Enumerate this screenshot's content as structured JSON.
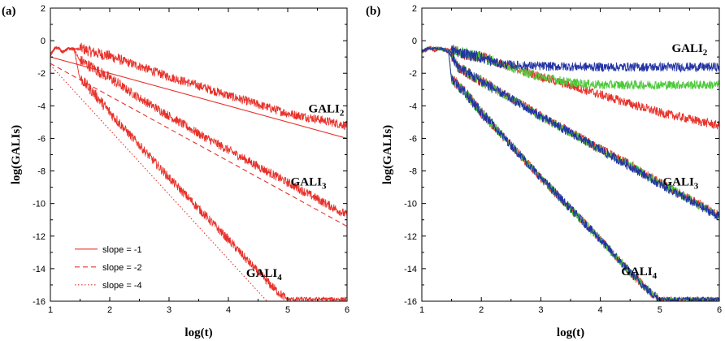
{
  "chart_data": [
    {
      "type": "line",
      "panel_label": "(a)",
      "xlabel": "log(t)",
      "ylabel": "log(GALIs)",
      "xlim": [
        1,
        6
      ],
      "ylim": [
        -16,
        2
      ],
      "xticks": [
        1,
        2,
        3,
        4,
        5,
        6
      ],
      "yticks": [
        2,
        0,
        -2,
        -4,
        -6,
        -8,
        -10,
        -12,
        -14,
        -16
      ],
      "legend": {
        "position": "lower-left",
        "entries": [
          "slope = -1",
          "slope = -2",
          "slope = -4"
        ]
      },
      "annotations": [
        {
          "text": "GALI",
          "sub": "2",
          "x": 5.35,
          "y": -4.4
        },
        {
          "text": "GALI",
          "sub": "3",
          "x": 5.05,
          "y": -8.9
        },
        {
          "text": "GALI",
          "sub": "4",
          "x": 4.3,
          "y": -14.5
        }
      ],
      "series": [
        {
          "role": "GALI_2",
          "color": "#e8312a",
          "style": "noisy",
          "x": [
            1.0,
            1.08,
            1.15,
            1.2,
            1.3,
            1.5,
            1.7,
            2.0,
            2.5,
            3.0,
            3.5,
            4.0,
            4.5,
            5.0,
            5.5,
            6.0
          ],
          "values": [
            -0.9,
            -0.45,
            -0.5,
            -0.75,
            -0.5,
            -0.55,
            -0.8,
            -1.05,
            -1.65,
            -2.3,
            -2.85,
            -3.45,
            -4.0,
            -4.55,
            -4.9,
            -5.3
          ]
        },
        {
          "role": "GALI_3",
          "color": "#e8312a",
          "style": "noisy",
          "x": [
            1.0,
            1.08,
            1.15,
            1.2,
            1.3,
            1.4,
            1.5,
            2.0,
            2.5,
            3.0,
            3.5,
            4.0,
            4.5,
            5.0,
            5.5,
            6.0
          ],
          "values": [
            -0.9,
            -0.45,
            -0.5,
            -0.75,
            -0.5,
            -0.55,
            -1.3,
            -2.4,
            -3.6,
            -4.7,
            -5.8,
            -6.8,
            -7.8,
            -8.8,
            -9.8,
            -10.8
          ]
        },
        {
          "role": "GALI_4",
          "color": "#e8312a",
          "style": "noisy",
          "x": [
            1.0,
            1.08,
            1.15,
            1.2,
            1.3,
            1.4,
            1.5,
            1.75,
            2.0,
            2.5,
            3.0,
            3.5,
            4.0,
            4.5,
            4.8,
            5.0,
            5.5,
            6.0
          ],
          "values": [
            -0.9,
            -0.45,
            -0.5,
            -0.75,
            -0.5,
            -0.55,
            -2.4,
            -3.4,
            -4.5,
            -6.5,
            -8.5,
            -10.4,
            -12.3,
            -14.3,
            -15.4,
            -16.0,
            -16.0,
            -16.0
          ]
        },
        {
          "name": "slope = -1",
          "color": "#e8312a",
          "style": "solid",
          "x": [
            1,
            6
          ],
          "values": [
            -1.0,
            -6.0
          ]
        },
        {
          "name": "slope = -2",
          "color": "#e8312a",
          "style": "dashed",
          "x": [
            1,
            6
          ],
          "values": [
            -1.4,
            -11.4
          ]
        },
        {
          "name": "slope = -4",
          "color": "#e8312a",
          "style": "dotted",
          "x": [
            1,
            4.65
          ],
          "values": [
            -1.5,
            -16.0
          ]
        }
      ]
    },
    {
      "type": "line",
      "panel_label": "(b)",
      "xlabel": "log(t)",
      "ylabel": "log(GALIs)",
      "xlim": [
        1,
        6
      ],
      "ylim": [
        -16,
        2
      ],
      "xticks": [
        1,
        2,
        3,
        4,
        5,
        6
      ],
      "yticks": [
        2,
        0,
        -2,
        -4,
        -6,
        -8,
        -10,
        -12,
        -14,
        -16
      ],
      "annotations": [
        {
          "text": "GALI",
          "sub": "2",
          "x": 5.2,
          "y": -0.7
        },
        {
          "text": "GALI",
          "sub": "3",
          "x": 5.05,
          "y": -8.9
        },
        {
          "text": "GALI",
          "sub": "4",
          "x": 4.35,
          "y": -14.4
        }
      ],
      "series": [
        {
          "role": "GALI_2 red",
          "color": "#e8312a",
          "style": "noisy",
          "x": [
            1.0,
            1.08,
            1.15,
            1.2,
            1.3,
            1.5,
            1.7,
            2.0,
            2.5,
            3.0,
            3.5,
            4.0,
            4.5,
            5.0,
            5.5,
            6.0
          ],
          "values": [
            -0.7,
            -0.6,
            -0.4,
            -0.7,
            -0.5,
            -0.6,
            -0.9,
            -1.1,
            -1.7,
            -2.3,
            -2.85,
            -3.4,
            -3.95,
            -4.5,
            -4.9,
            -5.3
          ]
        },
        {
          "role": "GALI_2 green",
          "color": "#4cc93a",
          "style": "noisy",
          "x": [
            1.0,
            1.1,
            1.3,
            1.5,
            2.0,
            2.5,
            2.8,
            3.0,
            3.5,
            4.0,
            4.5,
            5.0,
            5.5,
            6.0
          ],
          "values": [
            -0.7,
            -0.5,
            -0.5,
            -0.7,
            -1.1,
            -1.7,
            -2.1,
            -2.3,
            -2.65,
            -2.8,
            -2.8,
            -2.8,
            -2.8,
            -2.8
          ]
        },
        {
          "role": "GALI_2 blue",
          "color": "#2233a5",
          "style": "noisy",
          "x": [
            1.0,
            1.1,
            1.3,
            1.5,
            2.0,
            2.3,
            2.6,
            3.0,
            4.0,
            5.0,
            6.0
          ],
          "values": [
            -0.7,
            -0.5,
            -0.5,
            -0.7,
            -1.15,
            -1.5,
            -1.6,
            -1.65,
            -1.7,
            -1.7,
            -1.7
          ]
        },
        {
          "role": "GALI_3 red",
          "color": "#e8312a",
          "style": "noisy",
          "x": [
            1.0,
            1.1,
            1.3,
            1.45,
            1.6,
            2.0,
            2.5,
            3.0,
            3.5,
            4.0,
            4.5,
            5.0,
            5.5,
            6.0
          ],
          "values": [
            -0.7,
            -0.5,
            -0.5,
            -0.7,
            -1.7,
            -2.6,
            -3.6,
            -4.7,
            -5.7,
            -6.7,
            -7.7,
            -8.8,
            -9.8,
            -10.8
          ]
        },
        {
          "role": "GALI_3 green",
          "color": "#4cc93a",
          "style": "noisy",
          "x": [
            1.0,
            1.1,
            1.3,
            1.45,
            1.6,
            2.0,
            2.5,
            3.0,
            3.5,
            4.0,
            4.5,
            5.0,
            5.5,
            6.0
          ],
          "values": [
            -0.7,
            -0.5,
            -0.5,
            -0.7,
            -1.7,
            -2.6,
            -3.6,
            -4.75,
            -5.75,
            -6.75,
            -7.75,
            -8.85,
            -9.85,
            -10.85
          ]
        },
        {
          "role": "GALI_3 blue",
          "color": "#2233a5",
          "style": "noisy",
          "x": [
            1.0,
            1.1,
            1.3,
            1.45,
            1.6,
            2.0,
            2.5,
            3.0,
            3.5,
            4.0,
            4.5,
            5.0,
            5.5,
            6.0
          ],
          "values": [
            -0.7,
            -0.5,
            -0.5,
            -0.7,
            -1.7,
            -2.6,
            -3.65,
            -4.75,
            -5.75,
            -6.8,
            -7.8,
            -8.9,
            -9.9,
            -10.9
          ]
        },
        {
          "role": "GALI_4 red",
          "color": "#e8312a",
          "style": "noisy",
          "x": [
            1.0,
            1.1,
            1.3,
            1.45,
            1.5,
            1.75,
            2.0,
            2.5,
            3.0,
            3.5,
            4.0,
            4.5,
            4.8,
            5.0,
            6.0
          ],
          "values": [
            -0.7,
            -0.5,
            -0.5,
            -0.7,
            -2.4,
            -3.4,
            -4.5,
            -6.5,
            -8.5,
            -10.4,
            -12.3,
            -14.3,
            -15.4,
            -16.0,
            -16.0
          ]
        },
        {
          "role": "GALI_4 green",
          "color": "#4cc93a",
          "style": "noisy",
          "x": [
            1.0,
            1.1,
            1.3,
            1.45,
            1.5,
            1.75,
            2.0,
            2.5,
            3.0,
            3.5,
            4.0,
            4.5,
            4.8,
            5.0,
            6.0
          ],
          "values": [
            -0.7,
            -0.5,
            -0.5,
            -0.7,
            -2.4,
            -3.4,
            -4.5,
            -6.5,
            -8.5,
            -10.4,
            -12.3,
            -14.3,
            -15.4,
            -16.0,
            -16.0
          ]
        },
        {
          "role": "GALI_4 blue",
          "color": "#2233a5",
          "style": "noisy",
          "x": [
            1.0,
            1.1,
            1.3,
            1.45,
            1.5,
            1.75,
            2.0,
            2.5,
            3.0,
            3.5,
            4.0,
            4.5,
            4.8,
            5.0,
            6.0
          ],
          "values": [
            -0.7,
            -0.5,
            -0.5,
            -0.7,
            -2.4,
            -3.4,
            -4.5,
            -6.5,
            -8.5,
            -10.4,
            -12.3,
            -14.3,
            -15.4,
            -16.0,
            -16.0
          ]
        }
      ]
    }
  ]
}
